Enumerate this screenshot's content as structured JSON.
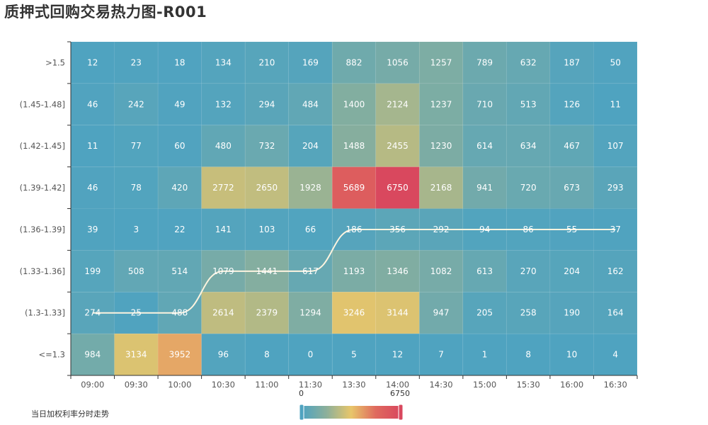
{
  "title": "质押式回购交易热力图-R001",
  "trend_label": "当日加权利率分时走势",
  "visual_map": {
    "min_label": "0",
    "max_label": "6750"
  },
  "colors": {
    "scale": [
      "#4fa3c0",
      "#8db09a",
      "#e8c66a",
      "#df6a5e",
      "#d9485e"
    ],
    "trend_line": "#fdf4df",
    "axis": "#333333",
    "tick_text": "#555555"
  },
  "chart_data": {
    "type": "heatmap",
    "x_categories": [
      "09:00",
      "09:30",
      "10:00",
      "10:30",
      "11:00",
      "11:30",
      "13:30",
      "14:00",
      "14:30",
      "15:00",
      "15:30",
      "16:00",
      "16:30"
    ],
    "y_categories": [
      ">1.5",
      "(1.45-1.48]",
      "(1.42-1.45]",
      "(1.39-1.42]",
      "(1.36-1.39]",
      "(1.33-1.36]",
      "(1.3-1.33]",
      "<=1.3"
    ],
    "values": [
      [
        12,
        23,
        18,
        134,
        210,
        169,
        882,
        1056,
        1257,
        789,
        632,
        187,
        50
      ],
      [
        46,
        242,
        49,
        132,
        294,
        484,
        1400,
        2124,
        1237,
        710,
        513,
        126,
        11
      ],
      [
        11,
        77,
        60,
        480,
        732,
        204,
        1488,
        2455,
        1230,
        614,
        634,
        467,
        107
      ],
      [
        46,
        78,
        420,
        2772,
        2650,
        1928,
        5689,
        6750,
        2168,
        941,
        720,
        673,
        293
      ],
      [
        39,
        3,
        22,
        141,
        103,
        66,
        186,
        356,
        292,
        94,
        86,
        55,
        37
      ],
      [
        199,
        508,
        514,
        1079,
        1441,
        617,
        1193,
        1346,
        1082,
        613,
        270,
        204,
        162
      ],
      [
        274,
        25,
        488,
        2614,
        2379,
        1294,
        3246,
        3144,
        947,
        205,
        258,
        190,
        164
      ],
      [
        984,
        3134,
        3952,
        96,
        8,
        0,
        5,
        12,
        7,
        1,
        8,
        10,
        4
      ]
    ],
    "value_range": [
      0,
      6750
    ],
    "trend": {
      "name": "当日加权利率分时走势",
      "points": [
        "(1.3-1.33]",
        "(1.3-1.33]",
        "(1.3-1.33]",
        "(1.33-1.36]",
        "(1.33-1.36]",
        "(1.33-1.36]",
        "(1.36-1.39]",
        "(1.36-1.39]",
        "(1.36-1.39]",
        "(1.36-1.39]",
        "(1.36-1.39]",
        "(1.36-1.39]",
        "(1.36-1.39]"
      ]
    },
    "grid": false,
    "legend": "bottom-left"
  }
}
